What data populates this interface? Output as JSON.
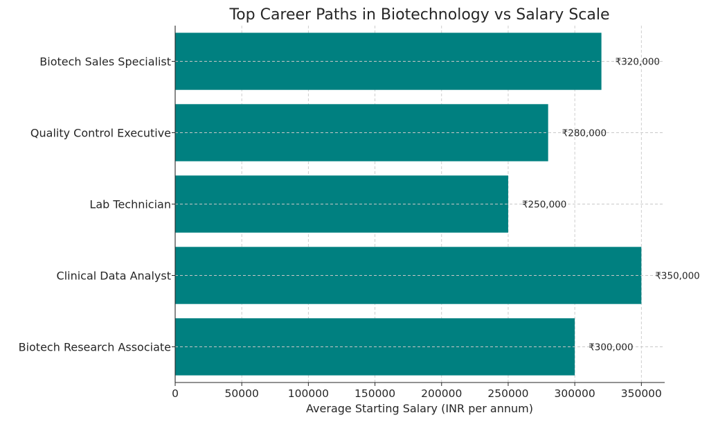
{
  "chart_data": {
    "type": "bar",
    "orientation": "horizontal",
    "title": "Top Career Paths in Biotechnology vs Salary Scale",
    "xlabel": "Average Starting Salary (INR per annum)",
    "ylabel": "",
    "categories": [
      "Biotech Research Associate",
      "Clinical Data Analyst",
      "Lab Technician",
      "Quality Control Executive",
      "Biotech Sales Specialist"
    ],
    "values": [
      300000,
      350000,
      250000,
      280000,
      320000
    ],
    "value_labels": [
      "₹300,000",
      "₹350,000",
      "₹250,000",
      "₹280,000",
      "₹320,000"
    ],
    "xlim": [
      0,
      367500
    ],
    "xticks": [
      0,
      50000,
      100000,
      150000,
      200000,
      250000,
      300000,
      350000
    ],
    "xtick_labels": [
      "0",
      "50000",
      "100000",
      "150000",
      "200000",
      "250000",
      "300000",
      "350000"
    ],
    "grid": true,
    "bar_color": "#008080"
  }
}
